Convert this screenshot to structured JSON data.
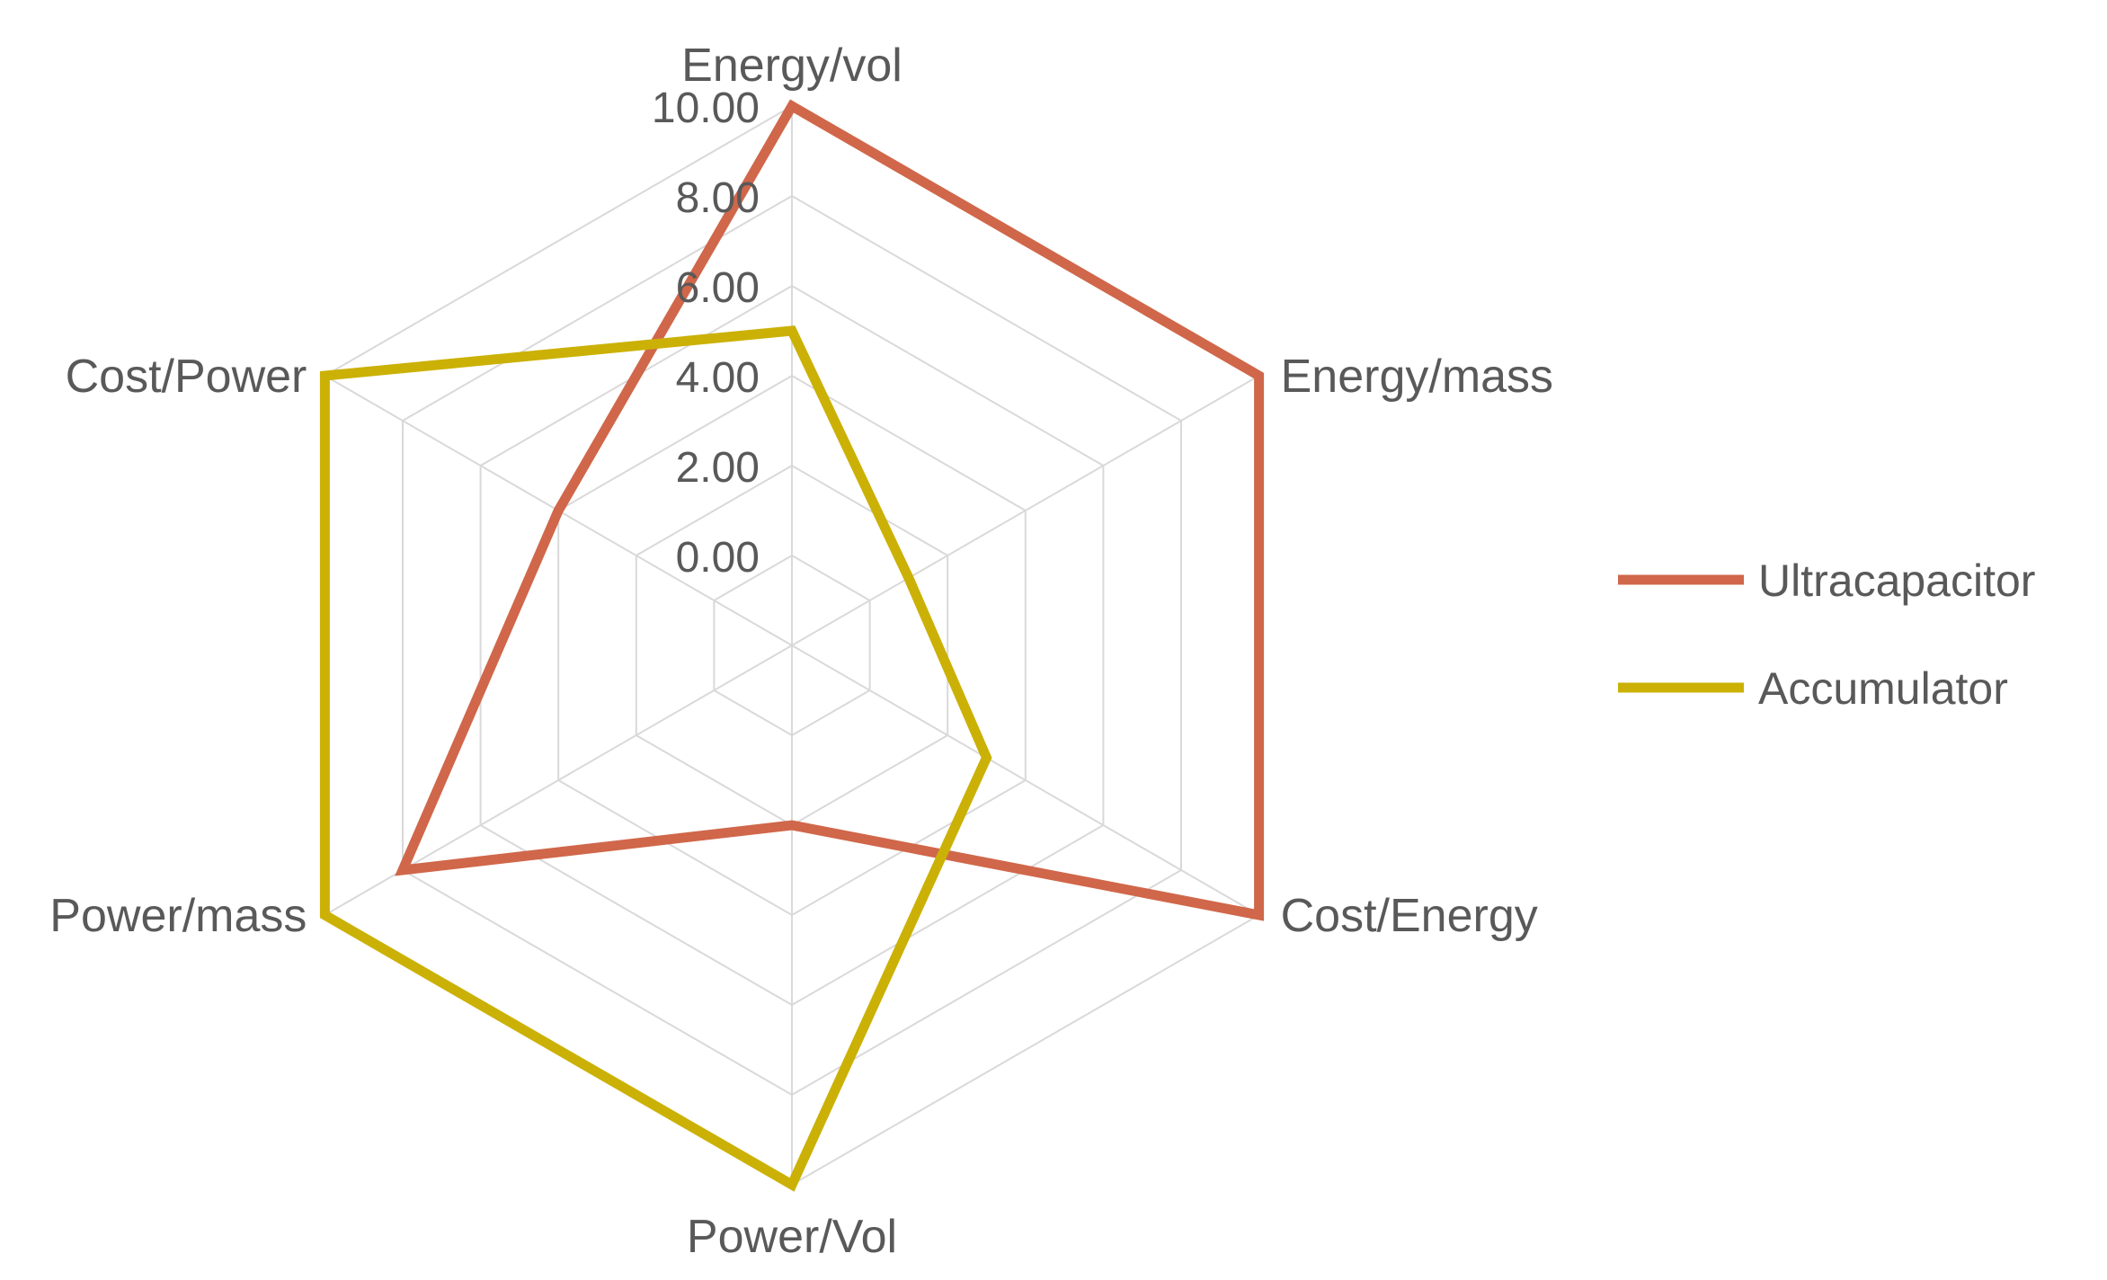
{
  "chart_data": {
    "type": "radar",
    "categories": [
      "Energy/vol",
      "Energy/mass",
      "Cost/Energy",
      "Power/Vol",
      "Power/mass",
      "Cost/Power"
    ],
    "series": [
      {
        "name": "Ultracapacitor",
        "color": "#D0674A",
        "values": [
          10,
          10,
          10,
          2.0,
          8.0,
          4.0
        ]
      },
      {
        "name": "Accumulator",
        "color": "#CBB105",
        "values": [
          5.0,
          1.0,
          3.0,
          10,
          10,
          10
        ]
      }
    ],
    "r_ticks": [
      0,
      2,
      4,
      6,
      8,
      10
    ],
    "r_tick_labels": [
      "0.00",
      "2.00",
      "4.00",
      "6.00",
      "8.00",
      "10.00"
    ],
    "r_range": [
      -2,
      10
    ],
    "grid": true,
    "grid_color": "#D9D9D9",
    "legend_position": "right"
  }
}
